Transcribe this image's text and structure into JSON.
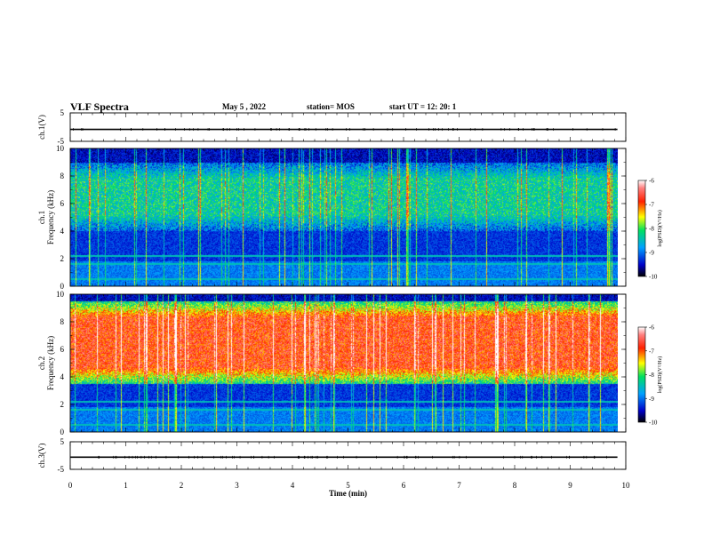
{
  "header": {
    "title": "VLF Spectra",
    "date": "May 5  , 2022",
    "station": "station= MOS",
    "start": "start  UT  =    12: 20: 1"
  },
  "chart_data": [
    {
      "type": "line",
      "panel": "ch1-voltage",
      "ylabel": "ch.1(V)",
      "ylim": [
        -5,
        5
      ],
      "yticks": [
        "5",
        "-5"
      ],
      "series": [
        {
          "x": [
            0,
            9.85
          ],
          "values": [
            -0.8,
            -0.8
          ]
        }
      ]
    },
    {
      "type": "heatmap",
      "panel": "ch1-spectrogram",
      "ylabel_top": "ch.1",
      "ylabel": "Frequency (kHz)",
      "ylim": [
        0,
        10
      ],
      "yticks": [
        "0",
        "2",
        "4",
        "6",
        "8",
        "10"
      ],
      "xlim": [
        0,
        10
      ],
      "data_extent_min": 9.85,
      "band_kHz": [
        4,
        9
      ],
      "band_mean_level": -8.3,
      "colorbar": {
        "label": "log(PSD)(V²/Hz)",
        "range": [
          -10,
          -6
        ],
        "ticks": [
          "-6",
          "-7",
          "-8",
          "-9",
          "-10"
        ]
      }
    },
    {
      "type": "heatmap",
      "panel": "ch2-spectrogram",
      "ylabel_top": "ch.2",
      "ylabel": "Frequency (kHz)",
      "ylim": [
        0,
        10
      ],
      "yticks": [
        "0",
        "2",
        "4",
        "6",
        "8",
        "10"
      ],
      "xlim": [
        0,
        10
      ],
      "data_extent_min": 9.85,
      "band_kHz": [
        3.5,
        9.5
      ],
      "band_mean_level": -6.8,
      "colorbar": {
        "label": "log(PSD)(V²/Hz)",
        "range": [
          -10,
          -6
        ],
        "ticks": [
          "-6",
          "-7",
          "-8",
          "-9",
          "-10"
        ]
      }
    },
    {
      "type": "line",
      "panel": "ch3-voltage",
      "ylabel": "ch.3(V)",
      "ylim": [
        -5,
        5
      ],
      "yticks": [
        "5",
        "-5"
      ],
      "series": [
        {
          "x": [
            0,
            9.85
          ],
          "values": [
            -0.6,
            -0.6
          ]
        }
      ]
    }
  ],
  "xaxis": {
    "label": "Time  (min)",
    "ticks": [
      "0",
      "1",
      "2",
      "3",
      "4",
      "5",
      "6",
      "7",
      "8",
      "9",
      "10"
    ]
  }
}
